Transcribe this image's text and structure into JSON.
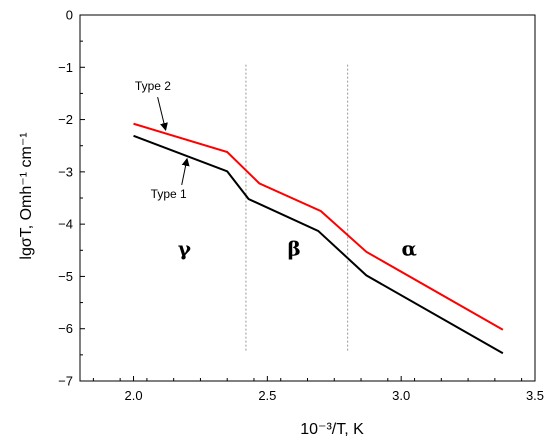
{
  "chart_data": {
    "type": "line",
    "title": "",
    "xlabel": "10⁻³/T, K",
    "ylabel": "lgσT, Omh⁻¹ cm⁻¹",
    "xlim": [
      1.8,
      3.5
    ],
    "ylim": [
      -7,
      0
    ],
    "xticks": [
      "2.0",
      "2.5",
      "3.0",
      "3.5"
    ],
    "yticks": [
      "0",
      "−1",
      "−2",
      "−3",
      "−4",
      "−5",
      "−6",
      "−7"
    ],
    "grid": false,
    "series": [
      {
        "name": "Type 2",
        "color": "#ff0000",
        "x": [
          2.0,
          2.35,
          2.47,
          2.7,
          2.87,
          3.38
        ],
        "y": [
          -2.08,
          -2.62,
          -3.22,
          -3.75,
          -4.53,
          -6.02
        ]
      },
      {
        "name": "Type 1",
        "color": "#000000",
        "x": [
          2.0,
          2.35,
          2.43,
          2.69,
          2.87,
          3.38
        ],
        "y": [
          -2.31,
          -2.99,
          -3.52,
          -4.13,
          -4.98,
          -6.47
        ]
      }
    ],
    "phase_boundaries": [
      2.42,
      2.8
    ],
    "phase_labels": [
      {
        "text": "γ",
        "x": 2.19,
        "y": -4.6
      },
      {
        "text": "β",
        "x": 2.6,
        "y": -4.6
      },
      {
        "text": "α",
        "x": 3.03,
        "y": -4.6
      }
    ]
  }
}
